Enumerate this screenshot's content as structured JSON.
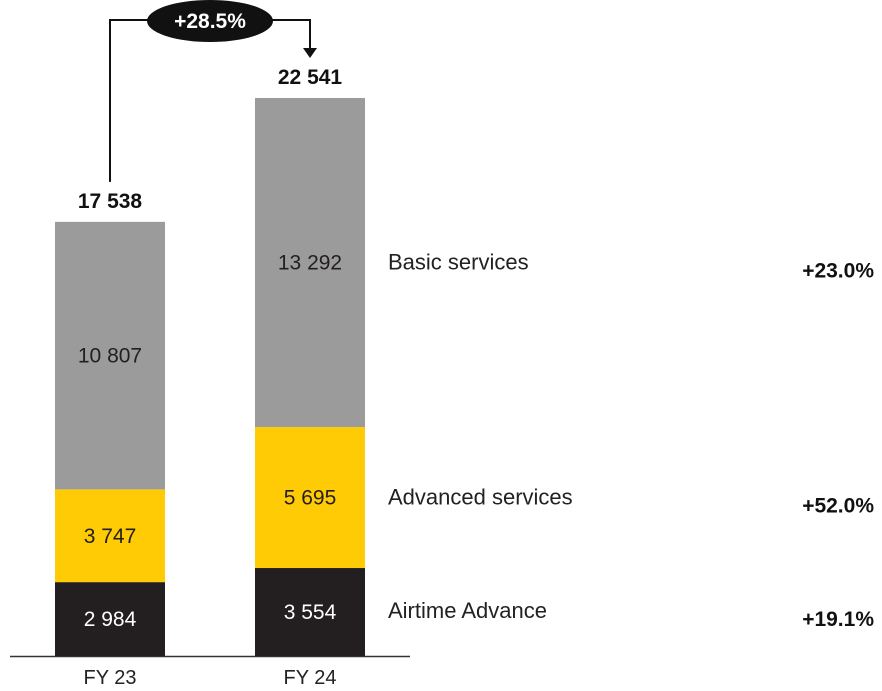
{
  "chart_data": {
    "type": "bar",
    "stacked": true,
    "categories": [
      "FY 23",
      "FY 24"
    ],
    "series": [
      {
        "name": "Airtime Advance",
        "values": [
          2984,
          3554
        ],
        "labels": [
          "2 984",
          "3 554"
        ],
        "color": "#231f20",
        "label_color": "#ffffff",
        "growth": "+19.1%"
      },
      {
        "name": "Advanced services",
        "values": [
          3747,
          5695
        ],
        "labels": [
          "3 747",
          "5 695"
        ],
        "color": "#ffcb05",
        "label_color": "#231f20",
        "growth": "+52.0%"
      },
      {
        "name": "Basic services",
        "values": [
          10807,
          13292
        ],
        "labels": [
          "10 807",
          "13 292"
        ],
        "color": "#9b9b9b",
        "label_color": "#231f20",
        "growth": "+23.0%"
      }
    ],
    "totals": [
      17538,
      22541
    ],
    "total_labels": [
      "17 538",
      "22 541"
    ],
    "change_badge": "+28.5%",
    "title": "",
    "xlabel": "",
    "ylabel": "",
    "ylim": [
      0,
      22541
    ],
    "grid": false,
    "legend": "right, aligned with FY 24 segments"
  }
}
